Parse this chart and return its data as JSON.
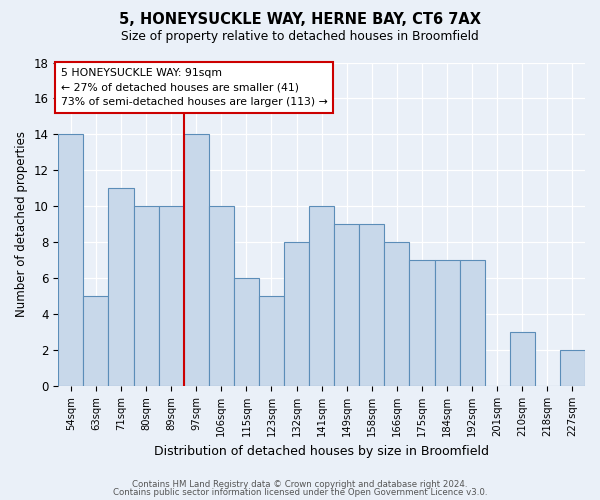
{
  "title1": "5, HONEYSUCKLE WAY, HERNE BAY, CT6 7AX",
  "title2": "Size of property relative to detached houses in Broomfield",
  "xlabel": "Distribution of detached houses by size in Broomfield",
  "ylabel": "Number of detached properties",
  "categories": [
    "54sqm",
    "63sqm",
    "71sqm",
    "80sqm",
    "89sqm",
    "97sqm",
    "106sqm",
    "115sqm",
    "123sqm",
    "132sqm",
    "141sqm",
    "149sqm",
    "158sqm",
    "166sqm",
    "175sqm",
    "184sqm",
    "192sqm",
    "201sqm",
    "210sqm",
    "218sqm",
    "227sqm"
  ],
  "values": [
    14,
    5,
    11,
    10,
    10,
    14,
    10,
    6,
    5,
    8,
    10,
    9,
    9,
    8,
    7,
    7,
    7,
    0,
    3,
    0,
    2
  ],
  "bar_color": "#c8d8ea",
  "bar_edge_color": "#5b8db8",
  "red_line_index": 4.5,
  "annotation_line1": "5 HONEYSUCKLE WAY: 91sqm",
  "annotation_line2": "← 27% of detached houses are smaller (41)",
  "annotation_line3": "73% of semi-detached houses are larger (113) →",
  "footnote1": "Contains HM Land Registry data © Crown copyright and database right 2024.",
  "footnote2": "Contains public sector information licensed under the Open Government Licence v3.0.",
  "ylim": [
    0,
    18
  ],
  "yticks": [
    0,
    2,
    4,
    6,
    8,
    10,
    12,
    14,
    16,
    18
  ],
  "background_color": "#eaf0f8",
  "grid_color": "#d8e4f0",
  "white_grid": "#ffffff"
}
